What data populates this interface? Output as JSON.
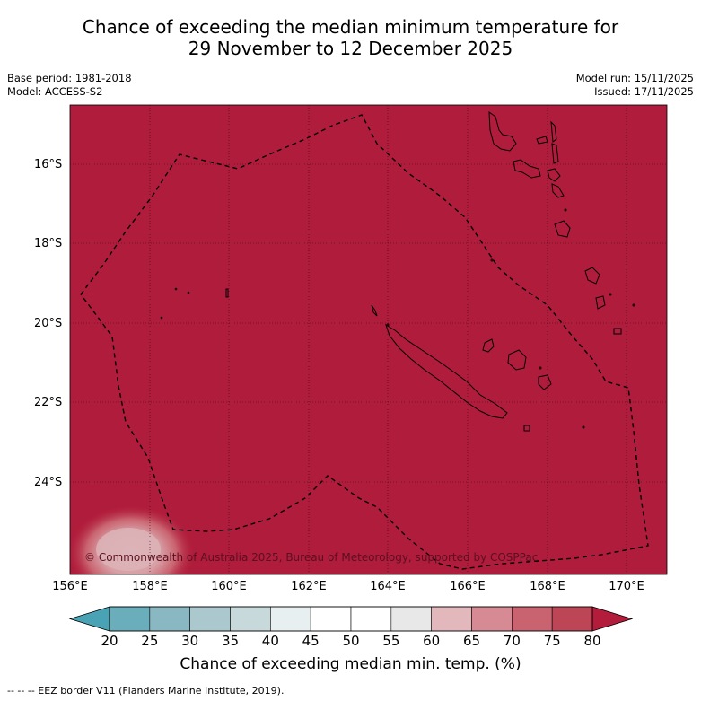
{
  "title_line1": "Chance of exceeding the median minimum temperature for",
  "title_line2": "29 November to 12 December 2025",
  "base_period": "Base period: 1981-2018",
  "model": "Model: ACCESS-S2",
  "model_run": "Model run: 15/11/2025",
  "issued": "Issued: 17/11/2025",
  "latitudes": [
    "16°S",
    "18°S",
    "20°S",
    "22°S",
    "24°S"
  ],
  "longitudes": [
    "156°E",
    "158°E",
    "160°E",
    "162°E",
    "164°E",
    "166°E",
    "168°E",
    "170°E"
  ],
  "copyright": "© Commonwealth of Australia 2025, Bureau of Meteorology, supported by COSPPac",
  "colorbar": {
    "ticks": [
      "20",
      "25",
      "30",
      "35",
      "40",
      "45",
      "50",
      "55",
      "60",
      "65",
      "70",
      "75",
      "80"
    ],
    "colors": [
      "#4aa3b4",
      "#6aaebc",
      "#8ab8c2",
      "#aac8cd",
      "#c8d9dc",
      "#e8eff0",
      "#ffffff",
      "#ffffff",
      "#e8e8e8",
      "#e3b8bd",
      "#d68a94",
      "#c9636f",
      "#bd4656",
      "#b31c3a"
    ],
    "label": "Chance of exceeding median min. temp. (%)"
  },
  "map_fill_color": "#b01c3b",
  "footnote": "--  --  -- EEZ border V11 (Flanders Marine Institute, 2019)."
}
